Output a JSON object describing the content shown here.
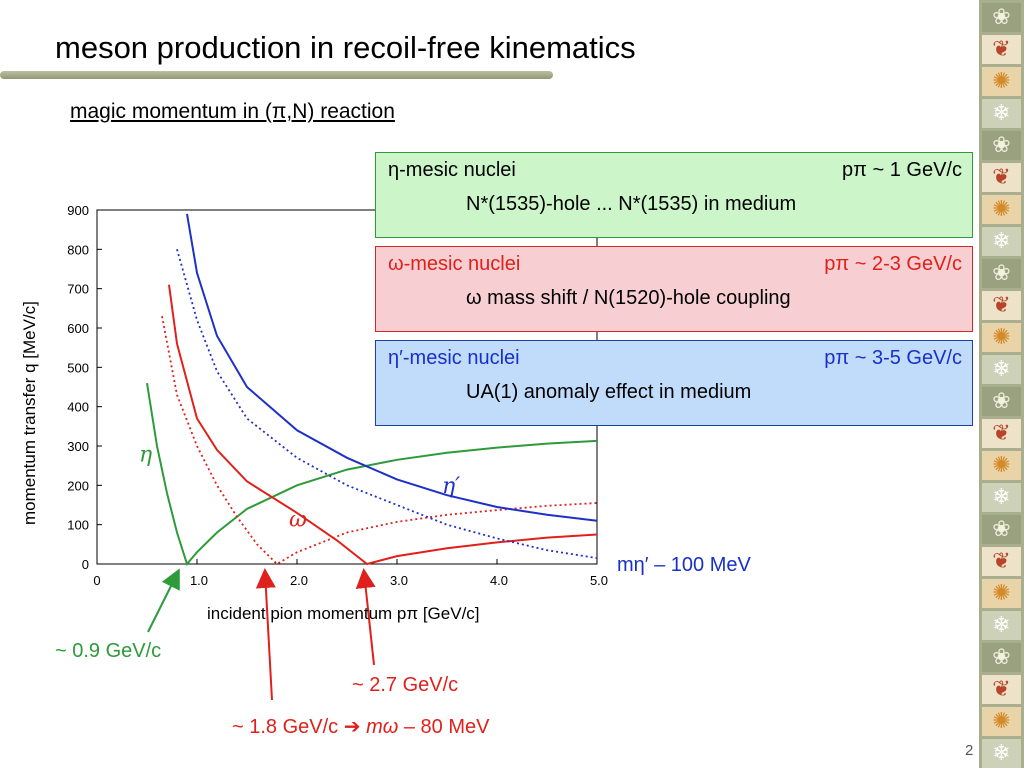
{
  "slide": {
    "title": "meson production in recoil-free kinematics",
    "subtitle": " magic momentum in (π,N) reaction",
    "page_number": "2"
  },
  "colors": {
    "eta": "#2f9a3a",
    "omega": "#e0201a",
    "etap": "#1e30c8",
    "axis": "#000000"
  },
  "boxes": {
    "eta": {
      "name": "η-mesic nuclei",
      "momentum": "pπ ~ 1 GeV/c",
      "desc": "N*(1535)-hole ... N*(1535) in medium"
    },
    "omega": {
      "name": "ω-mesic nuclei",
      "momentum": "pπ ~ 2-3 GeV/c",
      "desc": "ω mass shift / N(1520)-hole coupling"
    },
    "etap": {
      "name": "η′-mesic nuclei",
      "momentum": "pπ ~ 3-5 GeV/c",
      "desc": "UA(1) anomaly effect in medium"
    }
  },
  "annotations": {
    "eta_threshold": "~ 0.9 GeV/c",
    "omega_light": "~ 1.8 GeV/c",
    "omega_light_suffix": "– 80 MeV",
    "omega_light_mass": "mω",
    "omega_mag": "~ 2.7 GeV/c",
    "etap_reduced": "mη′ – 100 MeV"
  },
  "chart_data": {
    "type": "line",
    "xlabel": "incident pion momentum pπ [GeV/c]",
    "ylabel": "momentum transfer q [MeV/c]",
    "xlim": [
      0,
      5.0
    ],
    "ylim": [
      0,
      900
    ],
    "x_ticks": [
      "0",
      "1.0",
      "2.0",
      "3.0",
      "4.0",
      "5.0"
    ],
    "y_ticks": [
      "0",
      "100",
      "200",
      "300",
      "400",
      "500",
      "600",
      "700",
      "800",
      "900"
    ],
    "series": [
      {
        "name": "η",
        "style": "solid",
        "color": "#2f9a3a",
        "points": [
          [
            0.5,
            460
          ],
          [
            0.6,
            300
          ],
          [
            0.7,
            180
          ],
          [
            0.8,
            80
          ],
          [
            0.9,
            0
          ],
          [
            1.0,
            30
          ],
          [
            1.2,
            80
          ],
          [
            1.5,
            140
          ],
          [
            2.0,
            200
          ],
          [
            2.5,
            240
          ],
          [
            3.0,
            265
          ],
          [
            3.5,
            283
          ],
          [
            4.0,
            296
          ],
          [
            4.5,
            306
          ],
          [
            5.0,
            313
          ]
        ]
      },
      {
        "name": "ω light",
        "style": "dotted",
        "color": "#e0201a",
        "points": [
          [
            0.65,
            630
          ],
          [
            0.8,
            430
          ],
          [
            1.0,
            300
          ],
          [
            1.2,
            200
          ],
          [
            1.4,
            120
          ],
          [
            1.6,
            50
          ],
          [
            1.8,
            0
          ],
          [
            2.0,
            30
          ],
          [
            2.5,
            80
          ],
          [
            3.0,
            107
          ],
          [
            3.5,
            125
          ],
          [
            4.0,
            137
          ],
          [
            4.5,
            148
          ],
          [
            5.0,
            155
          ]
        ]
      },
      {
        "name": "ω",
        "style": "solid",
        "color": "#e0201a",
        "points": [
          [
            0.72,
            710
          ],
          [
            0.8,
            560
          ],
          [
            1.0,
            370
          ],
          [
            1.2,
            290
          ],
          [
            1.5,
            210
          ],
          [
            2.0,
            130
          ],
          [
            2.4,
            60
          ],
          [
            2.7,
            0
          ],
          [
            3.0,
            20
          ],
          [
            3.5,
            40
          ],
          [
            4.0,
            55
          ],
          [
            4.5,
            67
          ],
          [
            5.0,
            75
          ]
        ]
      },
      {
        "name": "η′ light",
        "style": "dotted",
        "color": "#1e30c8",
        "points": [
          [
            0.8,
            800
          ],
          [
            1.0,
            620
          ],
          [
            1.2,
            490
          ],
          [
            1.5,
            370
          ],
          [
            2.0,
            270
          ],
          [
            2.5,
            200
          ],
          [
            3.0,
            150
          ],
          [
            3.5,
            100
          ],
          [
            4.0,
            65
          ],
          [
            4.5,
            35
          ],
          [
            5.0,
            15
          ]
        ]
      },
      {
        "name": "η′",
        "style": "solid",
        "color": "#1e30c8",
        "points": [
          [
            0.9,
            890
          ],
          [
            1.0,
            740
          ],
          [
            1.2,
            580
          ],
          [
            1.5,
            450
          ],
          [
            2.0,
            340
          ],
          [
            2.5,
            270
          ],
          [
            3.0,
            215
          ],
          [
            3.5,
            175
          ],
          [
            4.0,
            145
          ],
          [
            4.5,
            125
          ],
          [
            5.0,
            110
          ]
        ]
      }
    ],
    "curve_labels": [
      {
        "text": "η",
        "x": 0.42,
        "y": 260,
        "color": "#2f9a3a"
      },
      {
        "text": "ω",
        "x": 1.92,
        "y": 95,
        "color": "#e0201a"
      },
      {
        "text": "η′",
        "x": 3.45,
        "y": 180,
        "color": "#1e30c8"
      }
    ]
  }
}
